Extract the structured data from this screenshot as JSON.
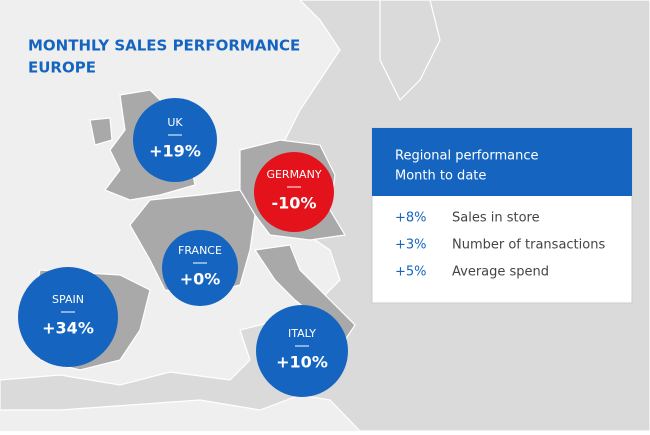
{
  "title": [
    "MONTHLY SALES PERFORMANCE",
    "EUROPE"
  ],
  "markers": [
    {
      "label": "UK",
      "value": "+19%",
      "color": "#1565c0"
    },
    {
      "label": "GERMANY",
      "value": "-10%",
      "color": "#e3121b"
    },
    {
      "label": "FRANCE",
      "value": "+0%",
      "color": "#1565c0"
    },
    {
      "label": "SPAIN",
      "value": "+34%",
      "color": "#1565c0"
    },
    {
      "label": "ITALY",
      "value": "+10%",
      "color": "#1565c0"
    }
  ],
  "panel": {
    "heading": [
      "Regional performance",
      "Month to date"
    ],
    "rows": [
      [
        "+8%",
        "Sales in store"
      ],
      [
        "+3%",
        "Number of transactions"
      ],
      [
        "+5%",
        "Average spend"
      ]
    ]
  }
}
